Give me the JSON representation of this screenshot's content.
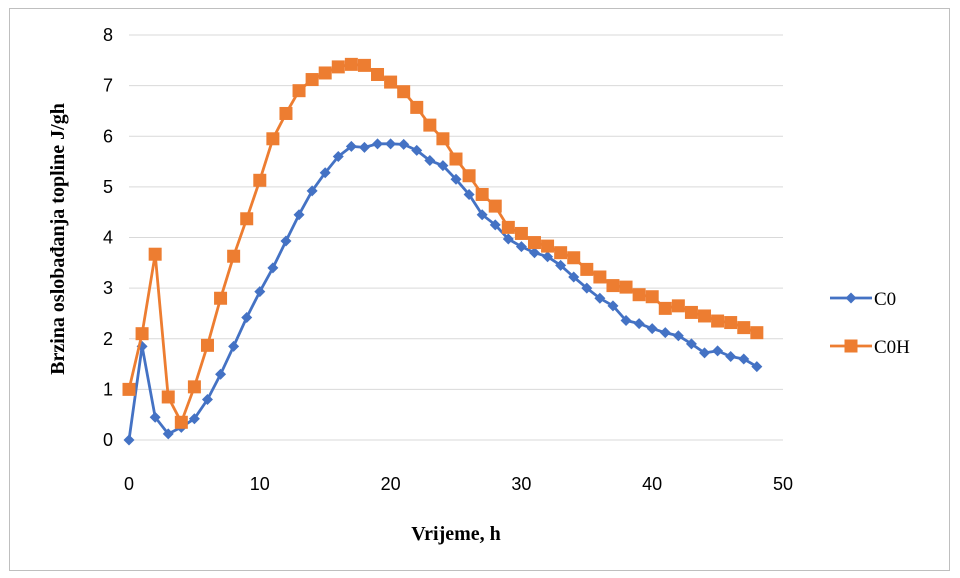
{
  "chart_data": {
    "type": "line",
    "title": "",
    "xlabel": "Vrijeme, h",
    "ylabel": "Brzina oslobađanja topline J/gh",
    "xlim": [
      0,
      50
    ],
    "ylim": [
      0,
      8
    ],
    "xticks": [
      0,
      10,
      20,
      30,
      40,
      50
    ],
    "yticks": [
      0,
      1,
      2,
      3,
      4,
      5,
      6,
      7,
      8
    ],
    "grid": true,
    "legend_position": "right",
    "x": [
      0,
      1,
      2,
      3,
      4,
      5,
      6,
      7,
      8,
      9,
      10,
      11,
      12,
      13,
      14,
      15,
      16,
      17,
      18,
      19,
      20,
      21,
      22,
      23,
      24,
      25,
      26,
      27,
      28,
      29,
      30,
      31,
      32,
      33,
      34,
      35,
      36,
      37,
      38,
      39,
      40,
      41,
      42,
      43,
      44,
      45,
      46,
      47,
      48
    ],
    "series": [
      {
        "name": "C0",
        "color": "#4472c4",
        "marker": "diamond",
        "values": [
          0,
          1.85,
          0.45,
          0.12,
          0.25,
          0.42,
          0.8,
          1.3,
          1.85,
          2.42,
          2.93,
          3.4,
          3.93,
          4.45,
          4.92,
          5.28,
          5.6,
          5.8,
          5.78,
          5.85,
          5.85,
          5.84,
          5.72,
          5.52,
          5.42,
          5.15,
          4.85,
          4.45,
          4.25,
          3.97,
          3.82,
          3.7,
          3.62,
          3.45,
          3.22,
          3.0,
          2.8,
          2.65,
          2.36,
          2.3,
          2.2,
          2.12,
          2.06,
          1.9,
          1.72,
          1.76,
          1.65,
          1.6,
          1.45
        ]
      },
      {
        "name": "C0H",
        "color": "#ed7d31",
        "marker": "square",
        "values": [
          1.0,
          2.1,
          3.67,
          0.85,
          0.35,
          1.05,
          1.87,
          2.8,
          3.63,
          4.37,
          5.13,
          5.95,
          6.45,
          6.9,
          7.12,
          7.25,
          7.37,
          7.42,
          7.4,
          7.22,
          7.07,
          6.88,
          6.57,
          6.22,
          5.95,
          5.55,
          5.22,
          4.85,
          4.62,
          4.2,
          4.08,
          3.9,
          3.83,
          3.7,
          3.6,
          3.37,
          3.22,
          3.05,
          3.02,
          2.87,
          2.83,
          2.6,
          2.65,
          2.52,
          2.45,
          2.35,
          2.32,
          2.22,
          2.12
        ]
      }
    ]
  }
}
